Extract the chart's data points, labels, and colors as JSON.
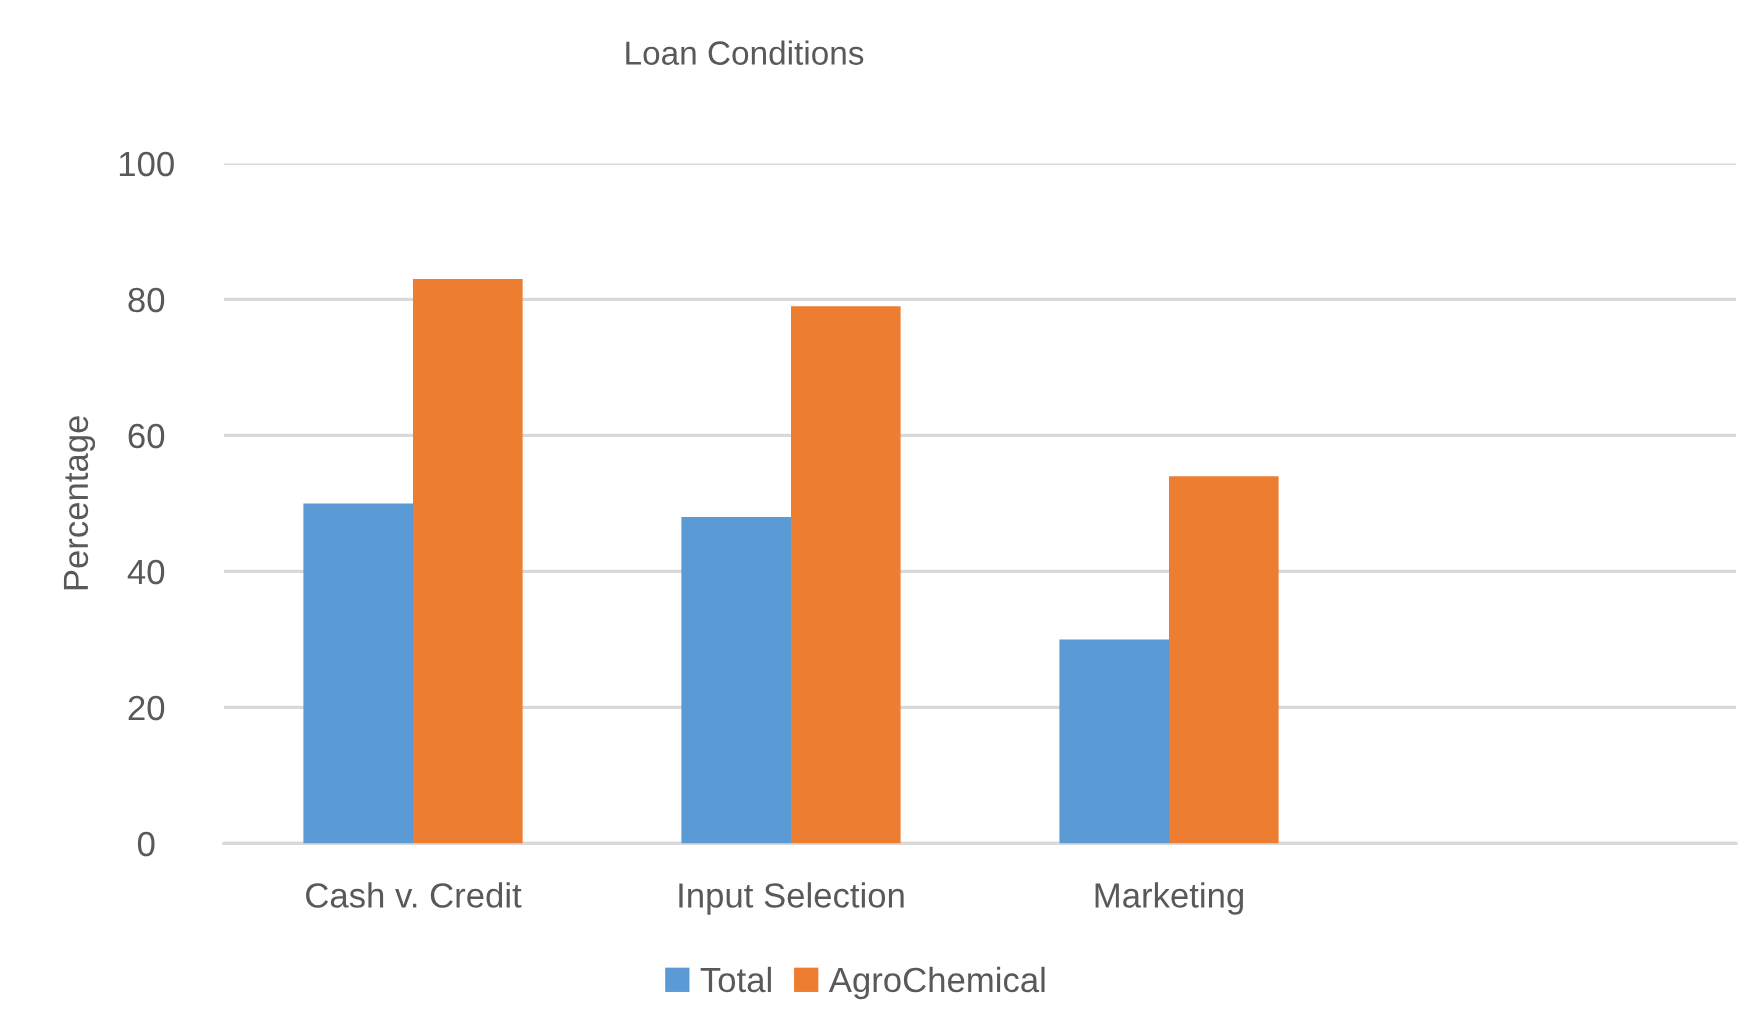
{
  "chart_data": {
    "type": "bar",
    "title": "Loan Conditions",
    "ylabel": "Percentage",
    "categories": [
      "Cash v. Credit",
      "Input Selection",
      "Marketing",
      null
    ],
    "series": [
      {
        "name": "Total",
        "color": "#5b9bd5",
        "values": [
          50,
          48,
          30,
          null
        ]
      },
      {
        "name": "AgroChemical",
        "color": "#ed7d31",
        "values": [
          83,
          79,
          54,
          null
        ]
      }
    ],
    "ylim": [
      0,
      100
    ],
    "yticks": [
      0,
      20,
      40,
      60,
      80,
      100
    ],
    "grid": "y",
    "legend": "bottom"
  }
}
